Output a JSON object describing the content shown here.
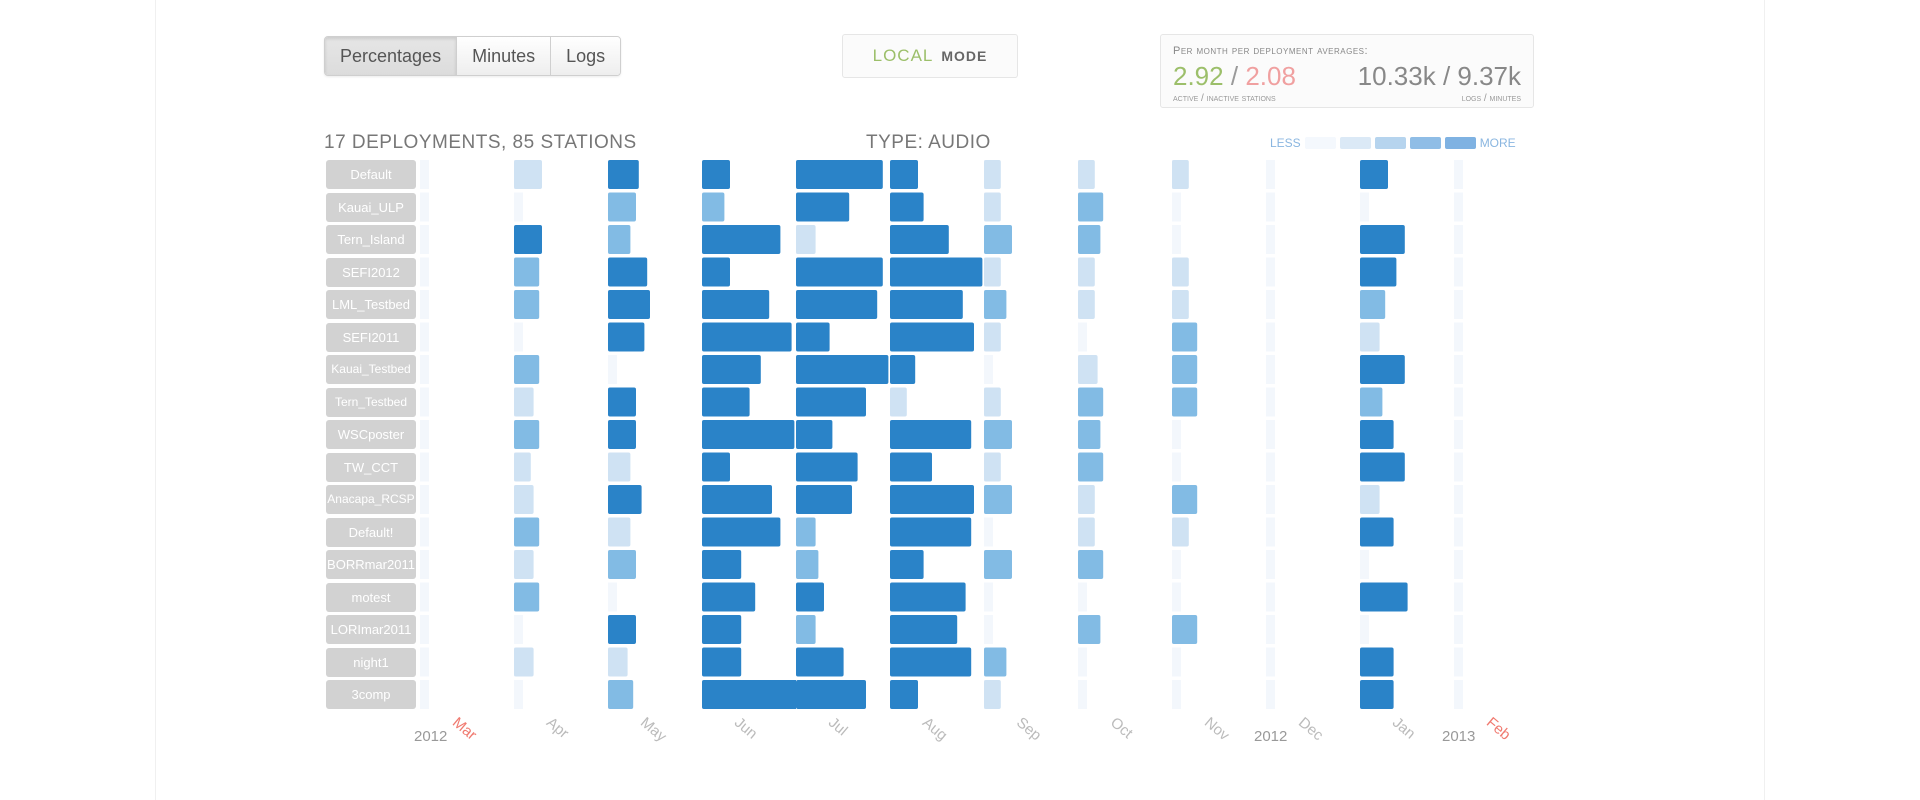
{
  "buttons": [
    "Percentages",
    "Minutes",
    "Logs"
  ],
  "active_button": 0,
  "mode": {
    "local": "LOCAL",
    "mode": "MODE"
  },
  "stats": {
    "caption": "Per month per deployment averages:",
    "active": "2.92",
    "slash": "/",
    "inactive": "2.08",
    "right_value": "10.33k / 9.37k",
    "sub_left": "active / inactive stations",
    "sub_right": "logs / minutes"
  },
  "header": {
    "summary": "17 DEPLOYMENTS, 85 STATIONS",
    "type": "TYPE: AUDIO"
  },
  "legend": {
    "less": "LESS",
    "more": "MORE",
    "colors": [
      "#f4f8fd",
      "#dbe9f6",
      "#b6d4ee",
      "#8fbde6",
      "#7fb2e2"
    ]
  },
  "colors": {
    "c1": "#f3f7fc",
    "c2": "#cfe2f3",
    "c3": "#82bbe4",
    "c4": "#2a83c8",
    "label_bg": "#d2d2d2"
  },
  "chart_data": {
    "type": "heatmap",
    "rows": [
      "Default",
      "Kauai_ULP",
      "Tern_Island",
      "SEFI2012",
      "LML_Testbed",
      "SEFI2011",
      "Kauai_Testbed",
      "Tern_Testbed",
      "WSCposter",
      "TW_CCT",
      "Anacapa_RCSP",
      "Default!",
      "BORRmar2011",
      "motest",
      "LORImar2011",
      "night1",
      "3comp"
    ],
    "columns": [
      "Mar",
      "Apr",
      "May",
      "Jun",
      "Jul",
      "Aug",
      "Sep",
      "Oct",
      "Nov",
      "Dec",
      "Jan",
      "Feb"
    ],
    "year_labels": [
      "2012",
      "2012",
      "2013"
    ],
    "highlight_months": [
      "Mar",
      "Feb"
    ],
    "value_scale": "0 = none, 1 = less … 4 = more; value shows as bar intensity and width",
    "intensity": [
      [
        1,
        2,
        4,
        4,
        4,
        4,
        2,
        2,
        2,
        1,
        4,
        1
      ],
      [
        1,
        1,
        3,
        3,
        4,
        4,
        2,
        3,
        1,
        1,
        1,
        1
      ],
      [
        1,
        4,
        3,
        4,
        2,
        4,
        3,
        3,
        1,
        1,
        4,
        1
      ],
      [
        1,
        3,
        4,
        4,
        4,
        4,
        2,
        2,
        2,
        1,
        4,
        1
      ],
      [
        1,
        3,
        4,
        4,
        4,
        4,
        3,
        2,
        2,
        1,
        3,
        1
      ],
      [
        1,
        1,
        4,
        4,
        4,
        4,
        2,
        1,
        3,
        1,
        2,
        1
      ],
      [
        1,
        3,
        1,
        4,
        4,
        4,
        1,
        2,
        3,
        1,
        4,
        1
      ],
      [
        1,
        2,
        4,
        4,
        4,
        2,
        2,
        3,
        3,
        1,
        3,
        1
      ],
      [
        1,
        3,
        4,
        4,
        4,
        4,
        3,
        3,
        1,
        1,
        4,
        1
      ],
      [
        1,
        2,
        2,
        4,
        4,
        4,
        2,
        3,
        1,
        1,
        4,
        1
      ],
      [
        1,
        2,
        4,
        4,
        4,
        4,
        3,
        2,
        3,
        1,
        2,
        1
      ],
      [
        1,
        3,
        2,
        4,
        3,
        4,
        1,
        2,
        2,
        1,
        4,
        1
      ],
      [
        1,
        2,
        3,
        4,
        3,
        4,
        3,
        3,
        1,
        1,
        1,
        1
      ],
      [
        1,
        3,
        1,
        4,
        4,
        4,
        1,
        1,
        1,
        1,
        4,
        1
      ],
      [
        1,
        1,
        4,
        4,
        3,
        4,
        1,
        3,
        3,
        1,
        1,
        1
      ],
      [
        1,
        2,
        2,
        4,
        4,
        4,
        3,
        1,
        1,
        1,
        4,
        1
      ],
      [
        1,
        1,
        3,
        4,
        4,
        4,
        2,
        1,
        1,
        1,
        4,
        1
      ]
    ],
    "width": [
      [
        0,
        1,
        1.1,
        1,
        3.1,
        1,
        0.6,
        0.6,
        0.6,
        0,
        1,
        0
      ],
      [
        0,
        0,
        1,
        0.8,
        1.9,
        1.2,
        0.6,
        0.9,
        0,
        0,
        0,
        0
      ],
      [
        0,
        1,
        0.8,
        2.8,
        0.7,
        2.1,
        1,
        0.8,
        0,
        0,
        1.6,
        0
      ],
      [
        0,
        0.9,
        1.4,
        1,
        3.1,
        3.3,
        0.6,
        0.6,
        0.6,
        0,
        1.3,
        0
      ],
      [
        0,
        0.9,
        1.5,
        2.4,
        2.9,
        2.6,
        0.8,
        0.6,
        0.6,
        0,
        0.9,
        0
      ],
      [
        0,
        0,
        1.3,
        3.2,
        1.2,
        3,
        0.6,
        0,
        0.9,
        0,
        0.7,
        0
      ],
      [
        0,
        0.9,
        0,
        2.1,
        3.3,
        0.9,
        0,
        0.7,
        0.9,
        0,
        1.6,
        0
      ],
      [
        0,
        0.7,
        1,
        1.7,
        2.5,
        0.6,
        0.6,
        0.9,
        0.9,
        0,
        0.8,
        0
      ],
      [
        0,
        0.9,
        1,
        3.3,
        1.3,
        2.9,
        1,
        0.8,
        0,
        0,
        1.2,
        0
      ],
      [
        0,
        0.6,
        0.8,
        1,
        2.2,
        1.5,
        0.6,
        0.9,
        0,
        0,
        1.6,
        0
      ],
      [
        0,
        0.7,
        1.2,
        2.5,
        2,
        3,
        1,
        0.6,
        0.9,
        0,
        0.7,
        0
      ],
      [
        0,
        0.9,
        0.8,
        2.8,
        0.7,
        2.9,
        0,
        0.6,
        0.6,
        0,
        1.2,
        0
      ],
      [
        0,
        0.7,
        1,
        1.4,
        0.8,
        1.2,
        1,
        0.9,
        0,
        0,
        0,
        0
      ],
      [
        0,
        0.9,
        0,
        1.9,
        1,
        2.7,
        0,
        0,
        0,
        0,
        1.7,
        0
      ],
      [
        0,
        0,
        1,
        1.4,
        0.7,
        2.4,
        0,
        0.8,
        0.9,
        0,
        0,
        0
      ],
      [
        0,
        0.7,
        0.7,
        1.4,
        1.7,
        2.9,
        0.8,
        0,
        0,
        0,
        1.2,
        0
      ],
      [
        0,
        0,
        0.9,
        3.5,
        2.5,
        1,
        0.6,
        0,
        0,
        0,
        1.2,
        0
      ]
    ]
  }
}
